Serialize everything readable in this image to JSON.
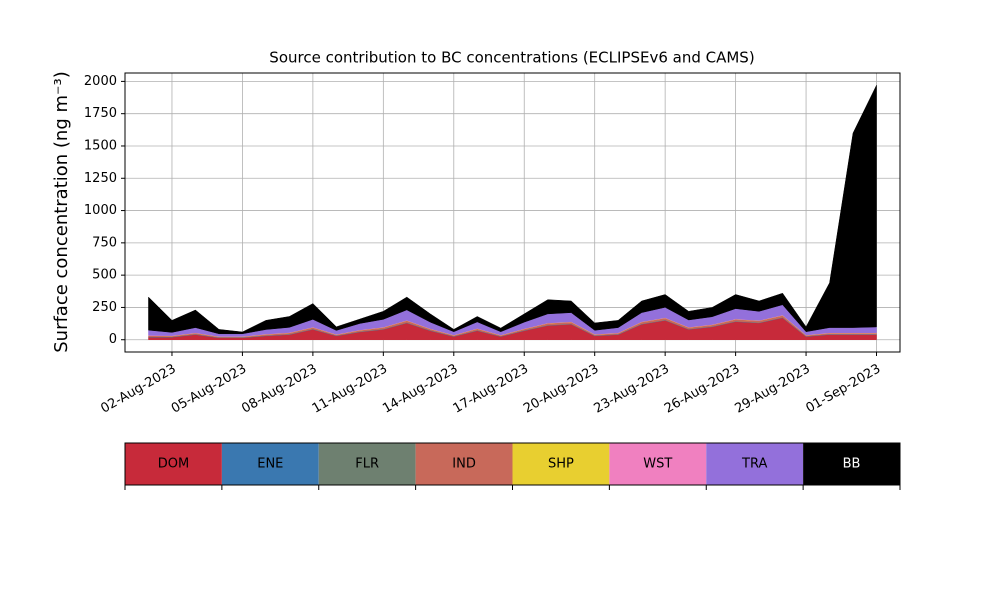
{
  "chart_data": {
    "type": "stacked_area",
    "title": "Source contribution to BC concentrations (ECLIPSEv6 and CAMS)",
    "y_label": "Surface concentration (ng m⁻³)",
    "x": [
      "2023-08-01",
      "2023-08-02",
      "2023-08-03",
      "2023-08-04",
      "2023-08-05",
      "2023-08-06",
      "2023-08-07",
      "2023-08-08",
      "2023-08-09",
      "2023-08-10",
      "2023-08-11",
      "2023-08-12",
      "2023-08-13",
      "2023-08-14",
      "2023-08-15",
      "2023-08-16",
      "2023-08-17",
      "2023-08-18",
      "2023-08-19",
      "2023-08-20",
      "2023-08-21",
      "2023-08-22",
      "2023-08-23",
      "2023-08-24",
      "2023-08-25",
      "2023-08-26",
      "2023-08-27",
      "2023-08-28",
      "2023-08-29",
      "2023-08-30",
      "2023-08-31",
      "2023-09-01"
    ],
    "xlim": [
      "2023-07-31",
      "2023-09-02"
    ],
    "xticks": [
      {
        "value": "2023-08-02",
        "label": "02-Aug-2023"
      },
      {
        "value": "2023-08-05",
        "label": "05-Aug-2023"
      },
      {
        "value": "2023-08-08",
        "label": "08-Aug-2023"
      },
      {
        "value": "2023-08-11",
        "label": "11-Aug-2023"
      },
      {
        "value": "2023-08-14",
        "label": "14-Aug-2023"
      },
      {
        "value": "2023-08-17",
        "label": "17-Aug-2023"
      },
      {
        "value": "2023-08-20",
        "label": "20-Aug-2023"
      },
      {
        "value": "2023-08-23",
        "label": "23-Aug-2023"
      },
      {
        "value": "2023-08-26",
        "label": "26-Aug-2023"
      },
      {
        "value": "2023-08-29",
        "label": "29-Aug-2023"
      },
      {
        "value": "2023-09-01",
        "label": "01-Sep-2023"
      }
    ],
    "ylim": [
      -95,
      2065
    ],
    "yticks": [
      0,
      250,
      500,
      750,
      1000,
      1250,
      1500,
      1750,
      2000
    ],
    "grid": true,
    "series": [
      {
        "name": "DOM",
        "color": "#c72a3a",
        "values": [
          20,
          20,
          40,
          15,
          15,
          30,
          40,
          80,
          30,
          60,
          80,
          130,
          70,
          25,
          70,
          25,
          70,
          110,
          120,
          30,
          40,
          120,
          150,
          80,
          100,
          140,
          130,
          170,
          25,
          40,
          40,
          40
        ]
      },
      {
        "name": "ENE",
        "color": "#3a78b0",
        "values": [
          2,
          2,
          2,
          2,
          2,
          2,
          2,
          2,
          2,
          2,
          2,
          2,
          2,
          2,
          2,
          2,
          2,
          2,
          2,
          2,
          2,
          2,
          2,
          2,
          2,
          2,
          2,
          2,
          2,
          2,
          2,
          2
        ]
      },
      {
        "name": "FLR",
        "color": "#6e8070",
        "values": [
          1,
          1,
          1,
          1,
          1,
          1,
          1,
          1,
          1,
          1,
          1,
          1,
          1,
          1,
          1,
          1,
          1,
          1,
          1,
          1,
          1,
          1,
          1,
          1,
          1,
          1,
          1,
          1,
          1,
          1,
          1,
          1
        ]
      },
      {
        "name": "IND",
        "color": "#c8695a",
        "values": [
          8,
          6,
          8,
          5,
          5,
          8,
          10,
          12,
          6,
          10,
          12,
          15,
          10,
          6,
          12,
          6,
          10,
          14,
          14,
          7,
          8,
          14,
          15,
          12,
          12,
          15,
          14,
          15,
          6,
          8,
          8,
          8
        ]
      },
      {
        "name": "SHP",
        "color": "#e8cf30",
        "values": [
          1,
          1,
          1,
          1,
          1,
          1,
          1,
          1,
          1,
          1,
          1,
          1,
          1,
          1,
          1,
          1,
          1,
          1,
          1,
          1,
          1,
          1,
          1,
          1,
          1,
          1,
          1,
          1,
          1,
          1,
          1,
          1
        ]
      },
      {
        "name": "WST",
        "color": "#f080c0",
        "values": [
          2,
          2,
          2,
          2,
          2,
          2,
          2,
          2,
          2,
          2,
          2,
          2,
          2,
          2,
          2,
          2,
          2,
          2,
          2,
          2,
          2,
          2,
          2,
          2,
          2,
          2,
          2,
          2,
          2,
          2,
          2,
          2
        ]
      },
      {
        "name": "TRA",
        "color": "#9370db",
        "values": [
          40,
          25,
          40,
          20,
          20,
          35,
          40,
          60,
          30,
          50,
          60,
          80,
          50,
          25,
          50,
          25,
          50,
          70,
          70,
          30,
          40,
          70,
          80,
          55,
          60,
          80,
          70,
          80,
          25,
          40,
          40,
          45
        ]
      },
      {
        "name": "BB",
        "color": "#000000",
        "values": [
          256,
          93,
          136,
          34,
          14,
          71,
          84,
          122,
          28,
          34,
          62,
          99,
          64,
          18,
          42,
          28,
          64,
          110,
          90,
          57,
          56,
          90,
          99,
          67,
          72,
          109,
          80,
          89,
          38,
          346,
          1506,
          1871
        ]
      }
    ]
  }
}
